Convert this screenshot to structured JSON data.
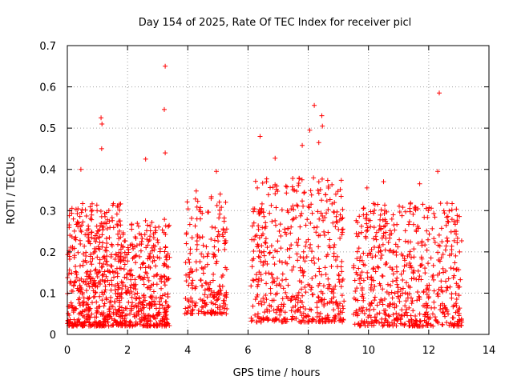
{
  "chart_data": {
    "type": "scatter",
    "title": "Day 154 of 2025, Rate Of TEC Index for receiver picl",
    "xlabel": "GPS time / hours",
    "ylabel": "ROTI / TECUs",
    "xlim": [
      0,
      14
    ],
    "ylim": [
      0,
      0.7
    ],
    "xticks": [
      0,
      2,
      4,
      6,
      8,
      10,
      12,
      14
    ],
    "yticks": [
      0,
      0.1,
      0.2,
      0.3,
      0.4,
      0.5,
      0.6,
      0.7
    ],
    "x_tick_labels": [
      "0",
      "2",
      "4",
      "6",
      "8",
      "10",
      "12",
      "14"
    ],
    "y_tick_labels": [
      "0",
      "0.1",
      "0.2",
      "0.3",
      "0.4",
      "0.5",
      "0.6",
      "0.7"
    ],
    "grid": true,
    "marker": "+",
    "color": "#ff0000",
    "notable_points": [
      {
        "x": 3.25,
        "y": 0.65
      },
      {
        "x": 12.35,
        "y": 0.585
      },
      {
        "x": 8.2,
        "y": 0.555
      },
      {
        "x": 3.22,
        "y": 0.545
      },
      {
        "x": 8.45,
        "y": 0.53
      },
      {
        "x": 1.12,
        "y": 0.525
      },
      {
        "x": 1.15,
        "y": 0.51
      },
      {
        "x": 8.47,
        "y": 0.505
      },
      {
        "x": 8.05,
        "y": 0.495
      },
      {
        "x": 6.4,
        "y": 0.48
      },
      {
        "x": 8.35,
        "y": 0.465
      },
      {
        "x": 7.8,
        "y": 0.458
      },
      {
        "x": 1.14,
        "y": 0.45
      },
      {
        "x": 3.25,
        "y": 0.44
      },
      {
        "x": 6.9,
        "y": 0.427
      },
      {
        "x": 2.6,
        "y": 0.425
      },
      {
        "x": 0.45,
        "y": 0.4
      },
      {
        "x": 12.3,
        "y": 0.395
      },
      {
        "x": 4.95,
        "y": 0.395
      },
      {
        "x": 11.7,
        "y": 0.365
      },
      {
        "x": 10.5,
        "y": 0.37
      },
      {
        "x": 9.95,
        "y": 0.355
      }
    ],
    "dense_clusters": [
      {
        "x_range": [
          0,
          1.8
        ],
        "y_range": [
          0.02,
          0.32
        ]
      },
      {
        "x_range": [
          1.8,
          3.4
        ],
        "y_range": [
          0.02,
          0.28
        ]
      },
      {
        "x_range": [
          3.9,
          5.3
        ],
        "y_range": [
          0.05,
          0.35
        ]
      },
      {
        "x_range": [
          6.1,
          9.2
        ],
        "y_range": [
          0.03,
          0.38
        ]
      },
      {
        "x_range": [
          9.5,
          13.1
        ],
        "y_range": [
          0.02,
          0.32
        ]
      }
    ]
  }
}
